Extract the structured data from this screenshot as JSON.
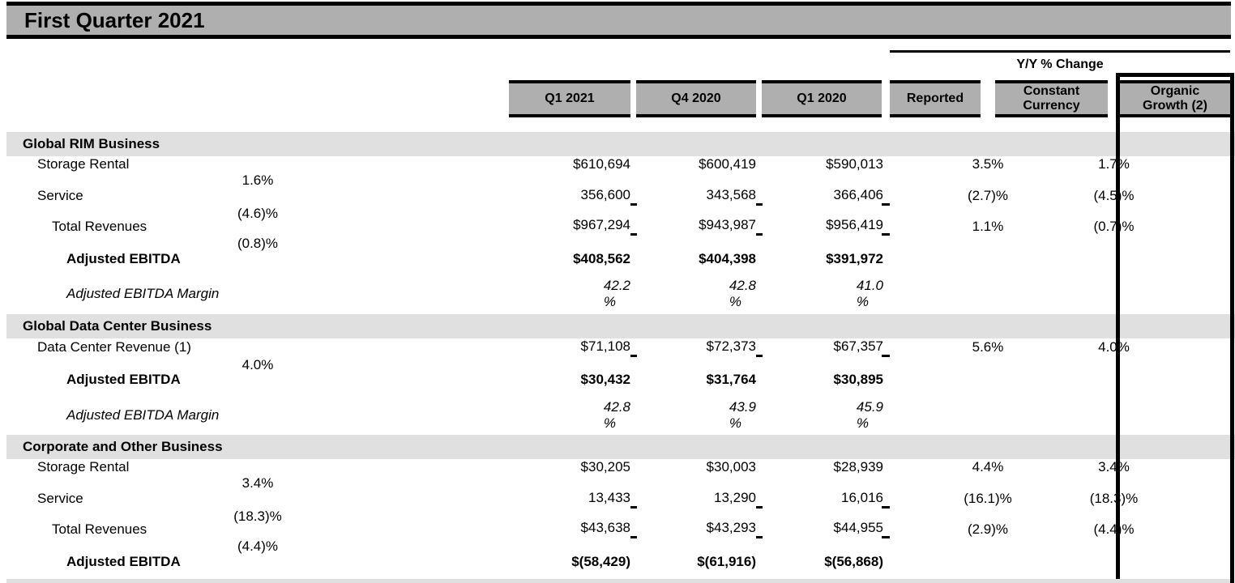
{
  "title": "First Quarter 2021",
  "table": {
    "group_header": "Y/Y % Change",
    "columns": [
      "Q1 2021",
      "Q4 2020",
      "Q1 2020",
      "Reported",
      "Constant Currency",
      "Organic Growth (2)"
    ],
    "sections": [
      {
        "name": "Global RIM Business",
        "rows": [
          {
            "label": "Storage Rental",
            "indent": 1,
            "style": "normal",
            "rule_below": false,
            "values": [
              "$610,694",
              "$600,419",
              "$590,013",
              "3.5%",
              "1.7%",
              "1.6%"
            ]
          },
          {
            "label": "Service",
            "indent": 1,
            "style": "normal",
            "rule_below": true,
            "values": [
              "356,600",
              "343,568",
              "366,406",
              "(2.7)%",
              "(4.5)%",
              "(4.6)%"
            ]
          },
          {
            "label": "Total Revenues",
            "indent": 2,
            "style": "normal",
            "rule_below": true,
            "values": [
              "$967,294",
              "$943,987",
              "$956,419",
              "1.1%",
              "(0.7)%",
              "(0.8)%"
            ]
          },
          {
            "label": "Adjusted EBITDA",
            "indent": 3,
            "style": "bold",
            "rule_below": false,
            "values": [
              "$408,562",
              "$404,398",
              "$391,972",
              "",
              "",
              ""
            ]
          },
          {
            "label": "Adjusted EBITDA Margin",
            "indent": 3,
            "style": "italic",
            "rule_below": false,
            "values": [
              "42.2 %",
              "42.8 %",
              "41.0 %",
              "",
              "",
              ""
            ]
          }
        ]
      },
      {
        "name": "Global Data Center Business",
        "rows": [
          {
            "label": "Data Center Revenue (1)",
            "indent": 1,
            "style": "normal",
            "rule_below": true,
            "values": [
              "$71,108",
              "$72,373",
              "$67,357",
              "5.6%",
              "4.0%",
              "4.0%"
            ]
          },
          {
            "label": "Adjusted EBITDA",
            "indent": 3,
            "style": "bold",
            "rule_below": false,
            "values": [
              "$30,432",
              "$31,764",
              "$30,895",
              "",
              "",
              ""
            ]
          },
          {
            "label": "Adjusted EBITDA Margin",
            "indent": 3,
            "style": "italic",
            "rule_below": false,
            "values": [
              "42.8 %",
              "43.9 %",
              "45.9 %",
              "",
              "",
              ""
            ]
          }
        ]
      },
      {
        "name": "Corporate and Other Business",
        "rows": [
          {
            "label": "Storage Rental",
            "indent": 1,
            "style": "normal",
            "rule_below": false,
            "values": [
              "$30,205",
              "$30,003",
              "$28,939",
              "4.4%",
              "3.4%",
              "3.4%"
            ]
          },
          {
            "label": "Service",
            "indent": 1,
            "style": "normal",
            "rule_below": true,
            "values": [
              "13,433",
              "13,290",
              "16,016",
              "(16.1)%",
              "(18.3)%",
              "(18.3)%"
            ]
          },
          {
            "label": "Total Revenues",
            "indent": 2,
            "style": "normal",
            "rule_below": true,
            "values": [
              "$43,638",
              "$43,293",
              "$44,955",
              "(2.9)%",
              "(4.4)%",
              "(4.4)%"
            ]
          },
          {
            "label": "Adjusted EBITDA",
            "indent": 3,
            "style": "bold",
            "rule_below": false,
            "values": [
              "$(58,429)",
              "$(61,916)",
              "$(56,868)",
              "",
              "",
              ""
            ]
          }
        ]
      }
    ]
  },
  "colors": {
    "bar_gray": "#afafaf",
    "section_gray": "#e0e0e0",
    "line_black": "#000000"
  }
}
